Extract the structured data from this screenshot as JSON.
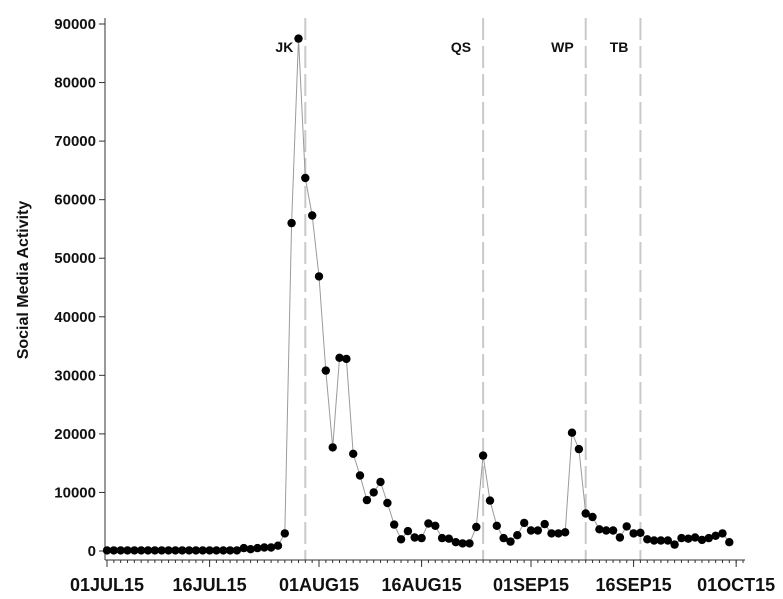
{
  "chart_data": {
    "type": "line",
    "ylabel": "Social Media Activity",
    "xlabel": "",
    "ylim": [
      0,
      90000
    ],
    "yticks": [
      0,
      10000,
      20000,
      30000,
      40000,
      50000,
      60000,
      70000,
      80000,
      90000
    ],
    "xrange": [
      "2015-07-01",
      "2015-10-02"
    ],
    "xticks": [
      {
        "date": "2015-07-01",
        "label": "01JUL15"
      },
      {
        "date": "2015-07-16",
        "label": "16JUL15"
      },
      {
        "date": "2015-08-01",
        "label": "01AUG15"
      },
      {
        "date": "2015-08-16",
        "label": "16AUG15"
      },
      {
        "date": "2015-09-01",
        "label": "01SEP15"
      },
      {
        "date": "2015-09-16",
        "label": "16SEP15"
      },
      {
        "date": "2015-10-01",
        "label": "01OCT15"
      }
    ],
    "markers": "filled-circle",
    "events": [
      {
        "date": "2015-07-30",
        "label": "JK"
      },
      {
        "date": "2015-08-25",
        "label": "QS"
      },
      {
        "date": "2015-09-09",
        "label": "WP"
      },
      {
        "date": "2015-09-17",
        "label": "TB"
      }
    ],
    "series": [
      {
        "values": [
          [
            "2015-07-01",
            100
          ],
          [
            "2015-07-02",
            100
          ],
          [
            "2015-07-03",
            100
          ],
          [
            "2015-07-04",
            100
          ],
          [
            "2015-07-05",
            100
          ],
          [
            "2015-07-06",
            100
          ],
          [
            "2015-07-07",
            100
          ],
          [
            "2015-07-08",
            100
          ],
          [
            "2015-07-09",
            100
          ],
          [
            "2015-07-10",
            100
          ],
          [
            "2015-07-11",
            100
          ],
          [
            "2015-07-12",
            100
          ],
          [
            "2015-07-13",
            100
          ],
          [
            "2015-07-14",
            100
          ],
          [
            "2015-07-15",
            100
          ],
          [
            "2015-07-16",
            100
          ],
          [
            "2015-07-17",
            100
          ],
          [
            "2015-07-18",
            100
          ],
          [
            "2015-07-19",
            100
          ],
          [
            "2015-07-20",
            100
          ],
          [
            "2015-07-21",
            500
          ],
          [
            "2015-07-22",
            300
          ],
          [
            "2015-07-23",
            500
          ],
          [
            "2015-07-24",
            600
          ],
          [
            "2015-07-25",
            600
          ],
          [
            "2015-07-26",
            900
          ],
          [
            "2015-07-27",
            3000
          ],
          [
            "2015-07-28",
            56000
          ],
          [
            "2015-07-29",
            87500
          ],
          [
            "2015-07-30",
            63700
          ],
          [
            "2015-07-31",
            57300
          ],
          [
            "2015-08-01",
            46900
          ],
          [
            "2015-08-02",
            30800
          ],
          [
            "2015-08-03",
            17700
          ],
          [
            "2015-08-04",
            33000
          ],
          [
            "2015-08-05",
            32800
          ],
          [
            "2015-08-06",
            16600
          ],
          [
            "2015-08-07",
            12900
          ],
          [
            "2015-08-08",
            8700
          ],
          [
            "2015-08-09",
            10000
          ],
          [
            "2015-08-10",
            11800
          ],
          [
            "2015-08-11",
            8200
          ],
          [
            "2015-08-12",
            4500
          ],
          [
            "2015-08-13",
            2000
          ],
          [
            "2015-08-14",
            3400
          ],
          [
            "2015-08-15",
            2300
          ],
          [
            "2015-08-16",
            2200
          ],
          [
            "2015-08-17",
            4700
          ],
          [
            "2015-08-18",
            4300
          ],
          [
            "2015-08-19",
            2200
          ],
          [
            "2015-08-20",
            2100
          ],
          [
            "2015-08-21",
            1500
          ],
          [
            "2015-08-22",
            1300
          ],
          [
            "2015-08-23",
            1300
          ],
          [
            "2015-08-24",
            4100
          ],
          [
            "2015-08-25",
            16300
          ],
          [
            "2015-08-26",
            8600
          ],
          [
            "2015-08-27",
            4300
          ],
          [
            "2015-08-28",
            2200
          ],
          [
            "2015-08-29",
            1600
          ],
          [
            "2015-08-30",
            2700
          ],
          [
            "2015-08-31",
            4800
          ],
          [
            "2015-09-01",
            3500
          ],
          [
            "2015-09-02",
            3500
          ],
          [
            "2015-09-03",
            4600
          ],
          [
            "2015-09-04",
            3000
          ],
          [
            "2015-09-05",
            3000
          ],
          [
            "2015-09-06",
            3200
          ],
          [
            "2015-09-07",
            20200
          ],
          [
            "2015-09-08",
            17400
          ],
          [
            "2015-09-09",
            6400
          ],
          [
            "2015-09-10",
            5800
          ],
          [
            "2015-09-11",
            3700
          ],
          [
            "2015-09-12",
            3500
          ],
          [
            "2015-09-13",
            3500
          ],
          [
            "2015-09-14",
            2300
          ],
          [
            "2015-09-15",
            4200
          ],
          [
            "2015-09-16",
            3000
          ],
          [
            "2015-09-17",
            3100
          ],
          [
            "2015-09-18",
            2000
          ],
          [
            "2015-09-19",
            1800
          ],
          [
            "2015-09-20",
            1800
          ],
          [
            "2015-09-21",
            1800
          ],
          [
            "2015-09-22",
            1100
          ],
          [
            "2015-09-23",
            2200
          ],
          [
            "2015-09-24",
            2100
          ],
          [
            "2015-09-25",
            2300
          ],
          [
            "2015-09-26",
            1900
          ],
          [
            "2015-09-27",
            2200
          ],
          [
            "2015-09-28",
            2600
          ],
          [
            "2015-09-29",
            3000
          ],
          [
            "2015-09-30",
            1500
          ]
        ]
      }
    ]
  }
}
